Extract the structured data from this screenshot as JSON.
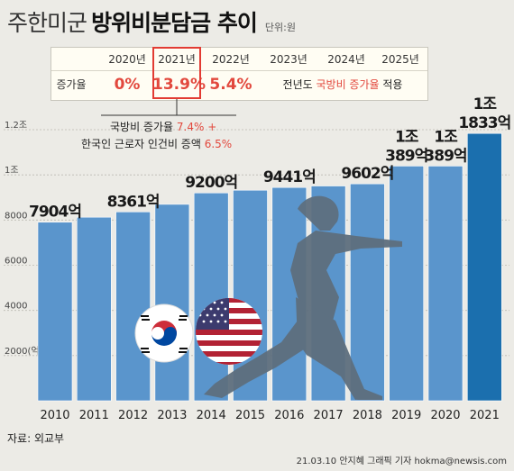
{
  "title": {
    "part1": "주한미군",
    "part2": "방위비분담금 추이",
    "unit": "단위:원"
  },
  "rate_table": {
    "row_label": "증가율",
    "years": [
      "2020년",
      "2021년",
      "2022년",
      "2023년",
      "2024년",
      "2025년"
    ],
    "values": [
      "0%",
      "13.9%",
      "5.4%"
    ],
    "note_prefix": "전년도",
    "note_highlight": "국방비 증가율",
    "note_suffix": "적용"
  },
  "callout": {
    "line1_text": "국방비 증가율",
    "line1_value": "7.4% +",
    "line2_text": "한국인 근로자 인건비 증액",
    "line2_value": "6.5%"
  },
  "source": "자료: 외교부",
  "credit": "21.03.10 안지혜 그래픽 기자 hokma@newsis.com",
  "colors": {
    "bar": "#5a95cc",
    "bar_highlight": "#1b6fae",
    "accent_red": "#e2483d"
  },
  "chart_data": {
    "type": "bar",
    "categories": [
      "2010",
      "2011",
      "2012",
      "2013",
      "2014",
      "2015",
      "2016",
      "2017",
      "2018",
      "2019",
      "2020",
      "2021"
    ],
    "values": [
      7904,
      8125,
      8361,
      8695,
      9200,
      9320,
      9441,
      9507,
      9602,
      10389,
      10389,
      11833
    ],
    "value_unit": "억원",
    "highlight_index": 11,
    "ylim": [
      0,
      12000
    ],
    "yticks": [
      2000,
      4000,
      6000,
      8000,
      10000,
      12000
    ],
    "ytick_labels": [
      "2000(억)",
      "4000",
      "6000",
      "8000",
      "1조",
      "1.2조"
    ],
    "data_labels": [
      {
        "index": 0,
        "top": "",
        "bottom": "7904억"
      },
      {
        "index": 2,
        "top": "",
        "bottom": "8361억"
      },
      {
        "index": 4,
        "top": "",
        "bottom": "9200억"
      },
      {
        "index": 6,
        "top": "",
        "bottom": "9441억"
      },
      {
        "index": 8,
        "top": "",
        "bottom": "9602억"
      },
      {
        "index": 9,
        "top": "1조",
        "bottom": "389억"
      },
      {
        "index": 10,
        "top": "1조",
        "bottom": "389억"
      },
      {
        "index": 11,
        "top": "1조",
        "bottom": "1833억"
      }
    ]
  }
}
